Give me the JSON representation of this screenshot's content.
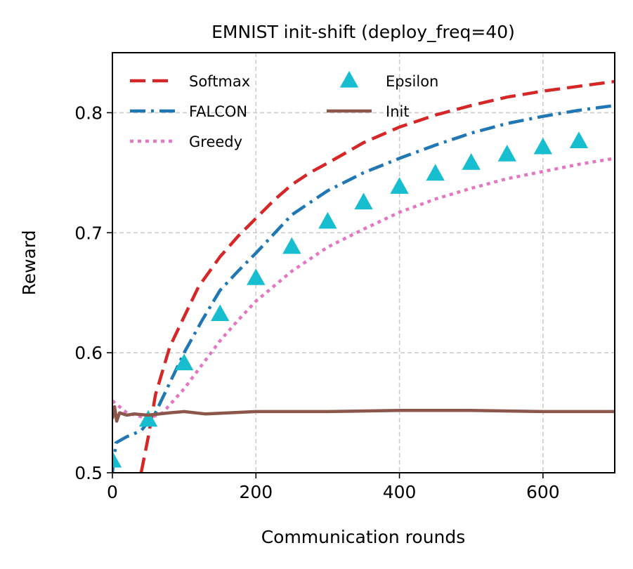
{
  "chart_data": {
    "type": "line",
    "title": "EMNIST init-shift (deploy_freq=40)",
    "xlabel": "Communication rounds",
    "ylabel": "Reward",
    "xlim": [
      0,
      700
    ],
    "ylim": [
      0.5,
      0.85
    ],
    "xticks": [
      0,
      200,
      400,
      600
    ],
    "xtick_labels": [
      "0",
      "200",
      "400",
      "600"
    ],
    "yticks": [
      0.5,
      0.6,
      0.7,
      0.8
    ],
    "ytick_labels": [
      "0.5",
      "0.6",
      "0.7",
      "0.8"
    ],
    "grid": true,
    "legend_position": "upper-left",
    "series": [
      {
        "name": "Softmax",
        "kind": "line",
        "style": "dashed",
        "color": "#d62728",
        "x": [
          40,
          50,
          60,
          80,
          100,
          120,
          150,
          175,
          200,
          225,
          250,
          275,
          300,
          350,
          400,
          450,
          500,
          550,
          600,
          650,
          700
        ],
        "y": [
          0.5,
          0.53,
          0.565,
          0.605,
          0.63,
          0.655,
          0.68,
          0.697,
          0.712,
          0.727,
          0.74,
          0.75,
          0.758,
          0.775,
          0.788,
          0.798,
          0.806,
          0.813,
          0.818,
          0.822,
          0.826
        ]
      },
      {
        "name": "FALCON",
        "kind": "line",
        "style": "dashdot",
        "color": "#1f77b4",
        "x": [
          0,
          5,
          20,
          40,
          60,
          80,
          100,
          125,
          150,
          175,
          200,
          250,
          300,
          350,
          400,
          450,
          500,
          550,
          600,
          650,
          700
        ],
        "y": [
          0.5,
          0.525,
          0.53,
          0.535,
          0.55,
          0.575,
          0.6,
          0.627,
          0.652,
          0.668,
          0.683,
          0.715,
          0.735,
          0.75,
          0.762,
          0.773,
          0.783,
          0.791,
          0.797,
          0.802,
          0.806
        ]
      },
      {
        "name": "Greedy",
        "kind": "line",
        "style": "dotted",
        "color": "#e377c2",
        "x": [
          0,
          20,
          50,
          70,
          100,
          125,
          150,
          175,
          200,
          250,
          300,
          350,
          400,
          450,
          500,
          550,
          600,
          650,
          700
        ],
        "y": [
          0.56,
          0.55,
          0.545,
          0.55,
          0.57,
          0.59,
          0.61,
          0.627,
          0.643,
          0.668,
          0.688,
          0.703,
          0.717,
          0.728,
          0.737,
          0.745,
          0.751,
          0.757,
          0.762
        ]
      },
      {
        "name": "Epsilon",
        "kind": "marker",
        "marker": "triangle",
        "color": "#17becf",
        "x": [
          0,
          50,
          100,
          150,
          200,
          250,
          300,
          350,
          400,
          450,
          500,
          550,
          600,
          650
        ],
        "y": [
          0.51,
          0.544,
          0.591,
          0.632,
          0.662,
          0.688,
          0.709,
          0.725,
          0.738,
          0.749,
          0.758,
          0.765,
          0.771,
          0.776
        ]
      },
      {
        "name": "Init",
        "kind": "line",
        "style": "solid",
        "color": "#8c564b",
        "x": [
          0,
          3,
          6,
          10,
          20,
          30,
          50,
          80,
          100,
          130,
          200,
          300,
          400,
          500,
          600,
          700
        ],
        "y": [
          0.545,
          0.555,
          0.543,
          0.55,
          0.548,
          0.549,
          0.548,
          0.55,
          0.551,
          0.549,
          0.551,
          0.551,
          0.552,
          0.552,
          0.551,
          0.551
        ]
      }
    ]
  }
}
